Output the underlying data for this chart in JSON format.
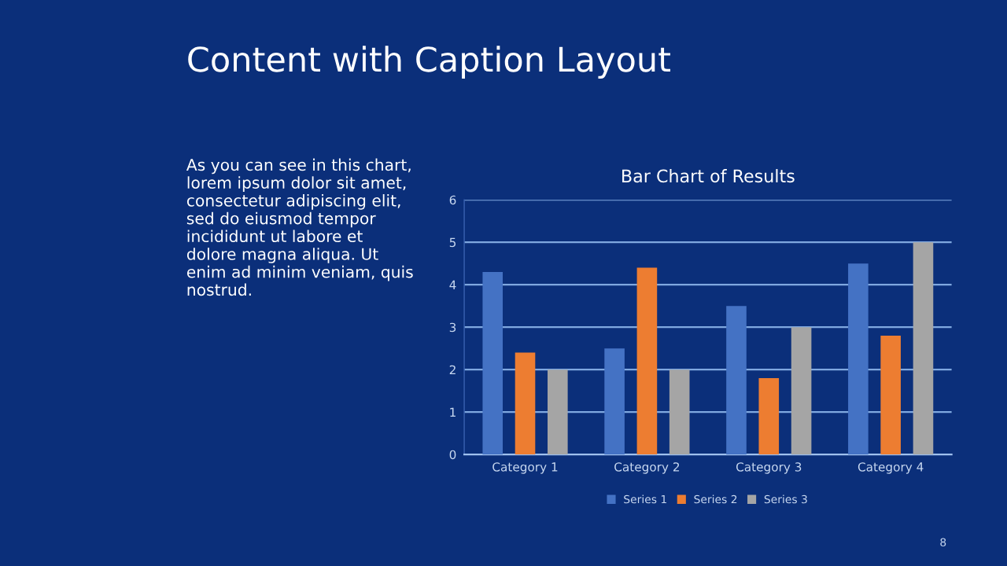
{
  "chart_data": {
    "type": "bar",
    "title": "Bar Chart of Results",
    "categories": [
      "Category 1",
      "Category 2",
      "Category 3",
      "Category 4"
    ],
    "series": [
      {
        "name": "Series 1",
        "color": "#4472c4",
        "values": [
          4.3,
          2.5,
          3.5,
          4.5
        ]
      },
      {
        "name": "Series 2",
        "color": "#ed7d31",
        "values": [
          2.4,
          4.4,
          1.8,
          2.8
        ]
      },
      {
        "name": "Series 3",
        "color": "#a5a5a5",
        "values": [
          2,
          2,
          3,
          5
        ]
      }
    ],
    "ylim": [
      0,
      6
    ],
    "yticks": [
      0,
      1,
      2,
      3,
      4,
      5,
      6
    ],
    "grid": "y",
    "legend": "bottom",
    "annotations": [
      "Content with Caption Layout",
      "As you can see in this chart,\nlorem ipsum dolor sit amet,\nconsectetur adipiscing elit,\nsed do eiusmod tempor\nincididunt ut labore et\ndolore magna aliqua. Ut\nenim ad minim veniam, quis\nnostrud.",
      "8"
    ]
  }
}
